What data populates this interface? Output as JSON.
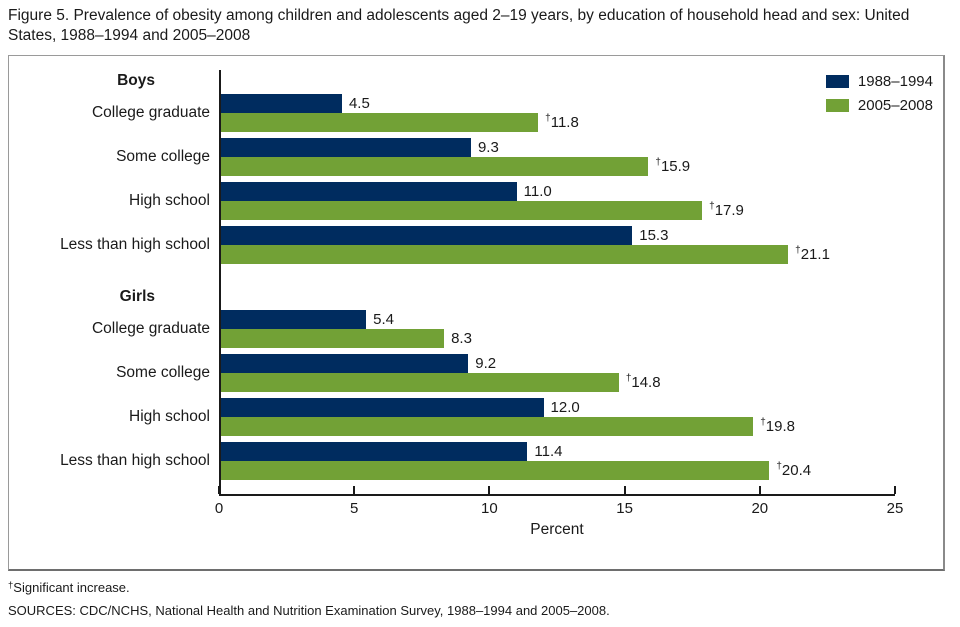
{
  "figure": {
    "title": "Figure 5. Prevalence of obesity among children and adolescents aged 2–19 years, by education of household head and sex: United States, 1988–1994 and 2005–2008"
  },
  "chart_data": {
    "type": "bar",
    "orientation": "horizontal",
    "xlabel": "Percent",
    "xlim": [
      0,
      25
    ],
    "xticks": [
      0,
      5,
      10,
      15,
      20,
      25
    ],
    "grid": false,
    "legend_position": "top-right",
    "dagger_symbol": "†",
    "series": [
      {
        "name": "1988–1994",
        "color": "#002c5f"
      },
      {
        "name": "2005–2008",
        "color": "#72a136"
      }
    ],
    "groups": [
      {
        "name": "Boys",
        "rows": [
          {
            "category": "College graduate",
            "bars": [
              {
                "value": 4.5,
                "label": "4.5",
                "dagger": false
              },
              {
                "value": 11.8,
                "label": "11.8",
                "dagger": true
              }
            ]
          },
          {
            "category": "Some college",
            "bars": [
              {
                "value": 9.3,
                "label": "9.3",
                "dagger": false
              },
              {
                "value": 15.9,
                "label": "15.9",
                "dagger": true
              }
            ]
          },
          {
            "category": "High school",
            "bars": [
              {
                "value": 11.0,
                "label": "11.0",
                "dagger": false
              },
              {
                "value": 17.9,
                "label": "17.9",
                "dagger": true
              }
            ]
          },
          {
            "category": "Less than high school",
            "bars": [
              {
                "value": 15.3,
                "label": "15.3",
                "dagger": false
              },
              {
                "value": 21.1,
                "label": "21.1",
                "dagger": true
              }
            ]
          }
        ]
      },
      {
        "name": "Girls",
        "rows": [
          {
            "category": "College graduate",
            "bars": [
              {
                "value": 5.4,
                "label": "5.4",
                "dagger": false
              },
              {
                "value": 8.3,
                "label": "8.3",
                "dagger": false
              }
            ]
          },
          {
            "category": "Some college",
            "bars": [
              {
                "value": 9.2,
                "label": "9.2",
                "dagger": false
              },
              {
                "value": 14.8,
                "label": "14.8",
                "dagger": true
              }
            ]
          },
          {
            "category": "High school",
            "bars": [
              {
                "value": 12.0,
                "label": "12.0",
                "dagger": false
              },
              {
                "value": 19.8,
                "label": "19.8",
                "dagger": true
              }
            ]
          },
          {
            "category": "Less than high school",
            "bars": [
              {
                "value": 11.4,
                "label": "11.4",
                "dagger": false
              },
              {
                "value": 20.4,
                "label": "20.4",
                "dagger": true
              }
            ]
          }
        ]
      }
    ]
  },
  "footnotes": {
    "dagger_symbol": "†",
    "dagger_text": "Significant increase.",
    "sources": "SOURCES: CDC/NCHS, National Health and Nutrition Examination Survey, 1988–1994 and 2005–2008."
  }
}
